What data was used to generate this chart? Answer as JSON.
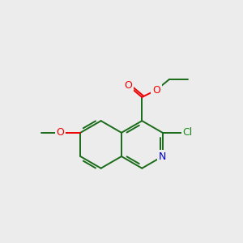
{
  "background_color": "#ececec",
  "bond_color": "#1a6b1a",
  "atom_colors": {
    "O": "#ee0000",
    "N": "#0000cc",
    "Cl": "#1a8c1a",
    "C": "#1a6b1a"
  },
  "figsize": [
    3.0,
    3.0
  ],
  "dpi": 100,
  "lw": 1.4
}
